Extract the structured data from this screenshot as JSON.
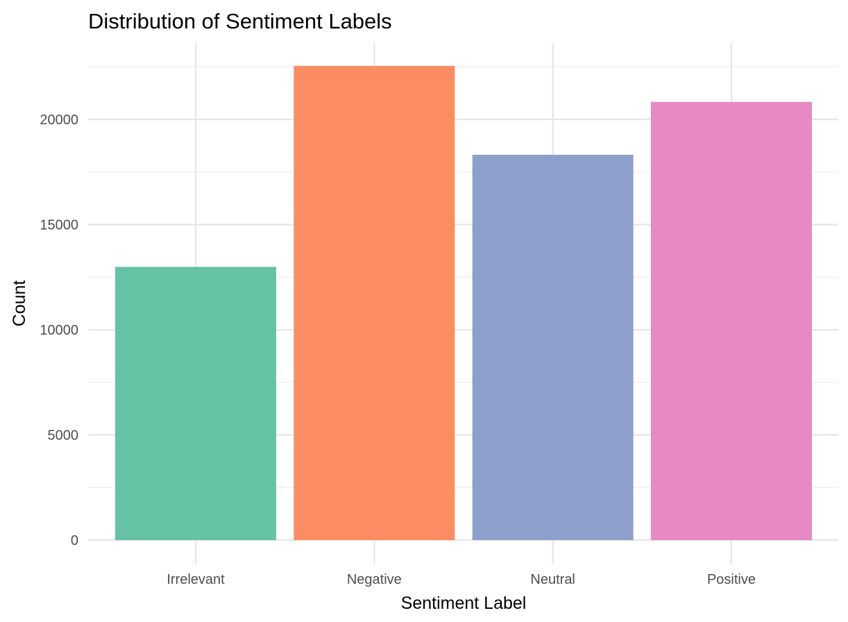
{
  "chart_data": {
    "type": "bar",
    "title": "Distribution of Sentiment Labels",
    "xlabel": "Sentiment Label",
    "ylabel": "Count",
    "categories": [
      "Irrelevant",
      "Negative",
      "Neutral",
      "Positive"
    ],
    "values": [
      12990,
      22542,
      18318,
      20832
    ],
    "colors": [
      "#66c2a5",
      "#fc8d62",
      "#8da0cb",
      "#e78ac3"
    ],
    "ylim": [
      0,
      23000
    ],
    "yticks": [
      0,
      5000,
      10000,
      15000,
      20000
    ],
    "ytick_labels": [
      "0",
      "5000",
      "10000",
      "15000",
      "20000"
    ],
    "grid": true,
    "legend": "none"
  }
}
